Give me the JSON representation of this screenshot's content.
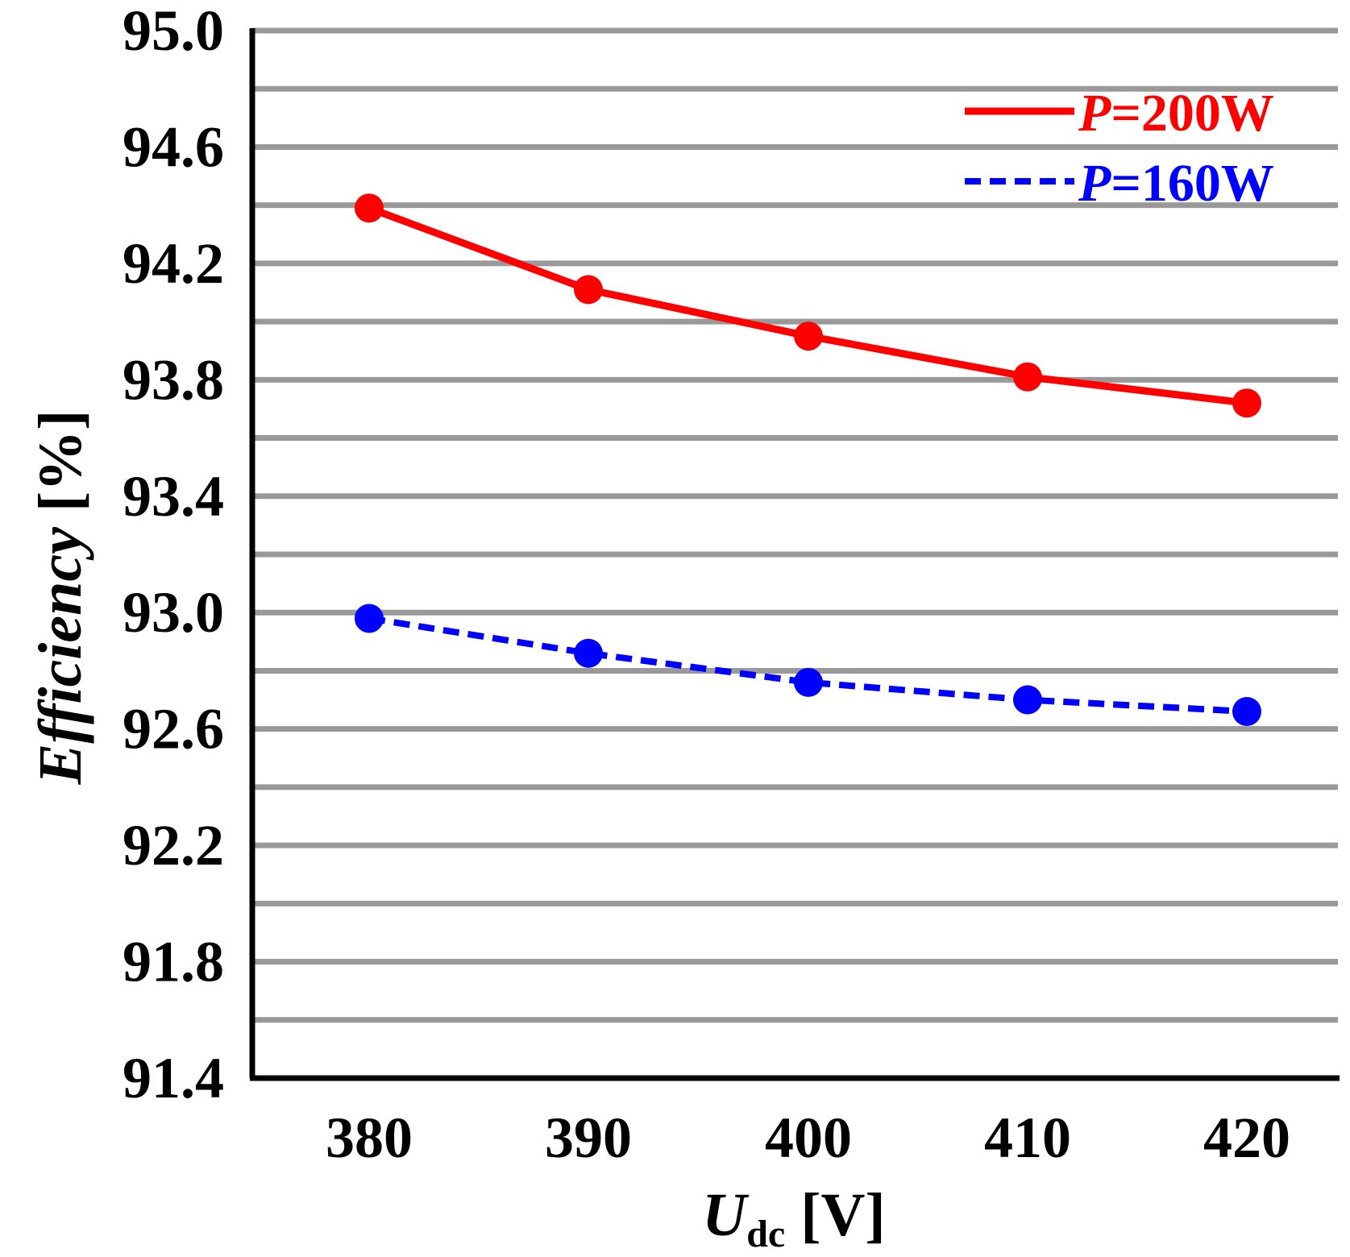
{
  "chart_data": {
    "type": "line",
    "title": "",
    "xlabel": {
      "main": "U",
      "sub": "dc",
      "unit": " [V]"
    },
    "ylabel": {
      "main": "Efficiency",
      "unit": " [%]"
    },
    "x": [
      380,
      390,
      400,
      410,
      420
    ],
    "x_tick_labels": [
      "380",
      "390",
      "400",
      "410",
      "420"
    ],
    "ylim": [
      91.4,
      95.0
    ],
    "y_ticks": [
      91.4,
      91.8,
      92.2,
      92.6,
      93.0,
      93.4,
      93.8,
      94.2,
      94.6,
      95.0
    ],
    "y_tick_labels": [
      "91.4",
      "91.8",
      "92.2",
      "92.6",
      "93.0",
      "93.4",
      "93.8",
      "94.2",
      "94.6",
      "95.0"
    ],
    "gridlines_y": [
      91.6,
      91.8,
      92.0,
      92.2,
      92.4,
      92.6,
      92.8,
      93.0,
      93.2,
      93.4,
      93.6,
      93.8,
      94.0,
      94.2,
      94.4,
      94.6,
      94.8,
      95.0
    ],
    "grid": true,
    "legend_position": "top-right",
    "series": [
      {
        "name": "P=200W",
        "label_var": "P",
        "label_rest": "=200W",
        "color": "#ff0000",
        "style": "solid",
        "values": [
          94.39,
          94.11,
          93.95,
          93.81,
          93.72
        ]
      },
      {
        "name": "P=160W",
        "label_var": "P",
        "label_rest": "=160W",
        "color": "#0000ff",
        "style": "dashed",
        "values": [
          92.98,
          92.86,
          92.76,
          92.7,
          92.66
        ]
      }
    ]
  }
}
